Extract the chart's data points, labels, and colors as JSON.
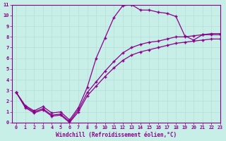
{
  "xlabel": "Windchill (Refroidissement éolien,°C)",
  "ylabel": "",
  "bg_color": "#c8eee8",
  "line_color": "#8b008b",
  "grid_color": "#b8ddd8",
  "xlim": [
    -0.5,
    23
  ],
  "ylim": [
    0,
    11
  ],
  "xticks": [
    0,
    1,
    2,
    3,
    4,
    5,
    6,
    7,
    8,
    9,
    10,
    11,
    12,
    13,
    14,
    15,
    16,
    17,
    18,
    19,
    20,
    21,
    22,
    23
  ],
  "yticks": [
    0,
    1,
    2,
    3,
    4,
    5,
    6,
    7,
    8,
    9,
    10,
    11
  ],
  "curve1_x": [
    0,
    1,
    2,
    3,
    4,
    5,
    6,
    7,
    8,
    9,
    10,
    11,
    12,
    13,
    14,
    15,
    16,
    17,
    18,
    19,
    20,
    21,
    22,
    23
  ],
  "curve1_y": [
    2.8,
    1.6,
    1.1,
    1.5,
    0.9,
    1.0,
    0.25,
    1.4,
    3.3,
    6.0,
    7.9,
    9.8,
    10.9,
    11.0,
    10.5,
    10.5,
    10.3,
    10.2,
    9.9,
    8.1,
    7.7,
    8.2,
    8.2,
    8.2
  ],
  "curve2_x": [
    0,
    1,
    2,
    3,
    4,
    5,
    6,
    7,
    8,
    9,
    10,
    11,
    12,
    13,
    14,
    15,
    16,
    17,
    18,
    19,
    20,
    21,
    22,
    23
  ],
  "curve2_y": [
    2.8,
    1.5,
    1.0,
    1.3,
    0.7,
    0.8,
    0.1,
    1.2,
    2.8,
    3.8,
    4.8,
    5.7,
    6.5,
    7.0,
    7.3,
    7.5,
    7.6,
    7.8,
    8.0,
    8.0,
    8.1,
    8.2,
    8.3,
    8.3
  ],
  "curve3_x": [
    0,
    1,
    2,
    3,
    4,
    5,
    6,
    7,
    8,
    9,
    10,
    11,
    12,
    13,
    14,
    15,
    16,
    17,
    18,
    19,
    20,
    21,
    22,
    23
  ],
  "curve3_y": [
    2.8,
    1.4,
    0.9,
    1.2,
    0.6,
    0.7,
    0.0,
    1.0,
    2.5,
    3.4,
    4.3,
    5.1,
    5.8,
    6.3,
    6.6,
    6.8,
    7.0,
    7.2,
    7.4,
    7.5,
    7.6,
    7.7,
    7.8,
    7.8
  ]
}
